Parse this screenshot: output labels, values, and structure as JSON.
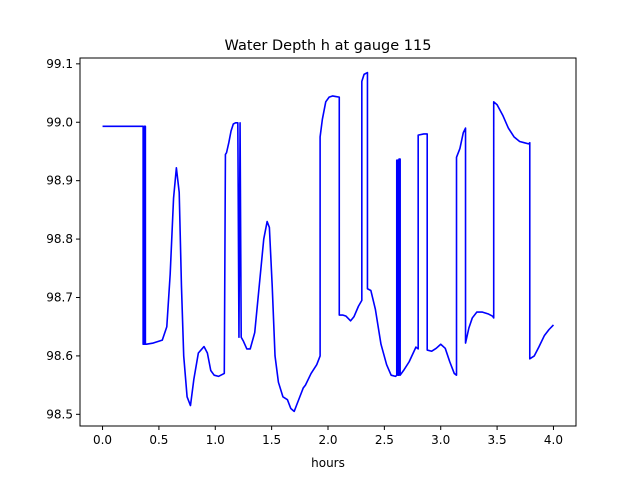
{
  "chart_data": {
    "type": "line",
    "title": "Water Depth h at gauge 115",
    "xlabel": "hours",
    "ylabel": "",
    "xlim": [
      -0.2,
      4.2
    ],
    "ylim": [
      98.48,
      99.11
    ],
    "xticks": [
      0.0,
      0.5,
      1.0,
      1.5,
      2.0,
      2.5,
      3.0,
      3.5,
      4.0
    ],
    "xtick_labels": [
      "0.0",
      "0.5",
      "1.0",
      "1.5",
      "2.0",
      "2.5",
      "3.0",
      "3.5",
      "4.0"
    ],
    "yticks": [
      98.5,
      98.6,
      98.7,
      98.8,
      98.9,
      99.0,
      99.1
    ],
    "ytick_labels": [
      "98.5",
      "98.6",
      "98.7",
      "98.8",
      "98.9",
      "99.0",
      "99.1"
    ],
    "grid": false,
    "legend": "none",
    "series": [
      {
        "color": "#0000ff",
        "x": [
          0.0,
          0.2,
          0.36,
          0.36,
          0.37,
          0.37,
          0.38,
          0.38,
          0.39,
          0.39,
          0.45,
          0.53,
          0.57,
          0.6,
          0.63,
          0.655,
          0.68,
          0.7,
          0.72,
          0.75,
          0.78,
          0.81,
          0.85,
          0.9,
          0.93,
          0.96,
          0.99,
          1.03,
          1.08,
          1.09,
          1.1,
          1.12,
          1.14,
          1.16,
          1.18,
          1.2,
          1.21,
          1.21,
          1.22,
          1.22,
          1.23,
          1.23,
          1.25,
          1.28,
          1.31,
          1.35,
          1.39,
          1.43,
          1.46,
          1.48,
          1.505,
          1.53,
          1.56,
          1.6,
          1.64,
          1.67,
          1.7,
          1.73,
          1.76,
          1.78,
          1.8,
          1.85,
          1.9,
          1.93,
          1.93,
          1.95,
          1.98,
          2.01,
          2.04,
          2.07,
          2.1,
          2.1,
          2.13,
          2.16,
          2.2,
          2.23,
          2.27,
          2.3,
          2.3,
          2.32,
          2.35,
          2.35,
          2.38,
          2.42,
          2.47,
          2.52,
          2.56,
          2.6,
          2.61,
          2.61,
          2.62,
          2.62,
          2.63,
          2.63,
          2.64,
          2.64,
          2.67,
          2.72,
          2.78,
          2.8,
          2.8,
          2.85,
          2.88,
          2.88,
          2.92,
          2.96,
          3.0,
          3.04,
          3.08,
          3.12,
          3.14,
          3.14,
          3.17,
          3.2,
          3.22,
          3.22,
          3.25,
          3.28,
          3.32,
          3.37,
          3.42,
          3.46,
          3.47,
          3.47,
          3.5,
          3.55,
          3.6,
          3.65,
          3.7,
          3.74,
          3.78,
          3.79,
          3.79,
          3.83,
          3.87,
          3.92,
          3.96,
          4.0
        ],
        "y": [
          98.993,
          98.993,
          98.993,
          98.62,
          98.62,
          98.993,
          98.993,
          98.62,
          98.62,
          98.62,
          98.622,
          98.627,
          98.65,
          98.74,
          98.87,
          98.922,
          98.88,
          98.72,
          98.6,
          98.53,
          98.515,
          98.56,
          98.605,
          98.616,
          98.605,
          98.575,
          98.567,
          98.565,
          98.57,
          98.945,
          98.948,
          98.965,
          98.985,
          98.997,
          98.999,
          98.999,
          98.632,
          98.632,
          98.999,
          98.999,
          98.632,
          98.632,
          98.625,
          98.612,
          98.612,
          98.64,
          98.72,
          98.8,
          98.83,
          98.82,
          98.72,
          98.6,
          98.555,
          98.53,
          98.525,
          98.51,
          98.505,
          98.52,
          98.535,
          98.545,
          98.55,
          98.57,
          98.585,
          98.6,
          98.975,
          99.005,
          99.035,
          99.043,
          99.045,
          99.044,
          99.043,
          98.67,
          98.67,
          98.668,
          98.66,
          98.667,
          98.685,
          98.695,
          99.07,
          99.082,
          99.085,
          98.715,
          98.712,
          98.68,
          98.62,
          98.585,
          98.567,
          98.565,
          98.567,
          98.935,
          98.935,
          98.567,
          98.567,
          98.937,
          98.937,
          98.567,
          98.575,
          98.59,
          98.615,
          98.612,
          98.978,
          98.98,
          98.98,
          98.61,
          98.608,
          98.613,
          98.62,
          98.613,
          98.59,
          98.57,
          98.567,
          98.94,
          98.955,
          98.982,
          98.99,
          98.622,
          98.648,
          98.665,
          98.675,
          98.675,
          98.672,
          98.668,
          98.665,
          99.035,
          99.03,
          99.012,
          98.99,
          98.975,
          98.967,
          98.965,
          98.963,
          98.965,
          98.595,
          98.6,
          98.615,
          98.635,
          98.645,
          98.653
        ]
      }
    ]
  }
}
